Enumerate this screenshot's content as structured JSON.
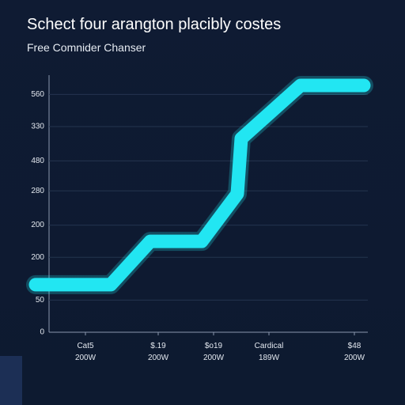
{
  "chart_data": {
    "type": "line",
    "title": "Schect four arangton placibly costes",
    "subtitle": "Free Comnider Chanser",
    "xlim": [
      0,
      420
    ],
    "ylim": [
      0,
      600
    ],
    "yticks": [
      0,
      {
        "value": 75,
        "label": "50"
      },
      {
        "value": 175,
        "label": "200"
      },
      {
        "value": 250,
        "label": "200"
      },
      {
        "value": 330,
        "label": "280"
      },
      {
        "value": 400,
        "label": "480"
      },
      {
        "value": 480,
        "label": "330"
      },
      {
        "value": 555,
        "label": "560"
      }
    ],
    "xticks": [
      {
        "value": 63,
        "label": "Cat5\n200W"
      },
      {
        "value": 155,
        "label": "$.19\n200W"
      },
      {
        "value": 225,
        "label": "$o19\n200W"
      },
      {
        "value": 295,
        "label": "Cardical\n189W"
      },
      {
        "value": 403,
        "label": "$48\n200W"
      }
    ],
    "grid": true,
    "series": [
      {
        "color": "#22e6f2",
        "x": [
          0,
          95,
          145,
          210,
          255,
          260,
          335,
          415
        ],
        "values": [
          111,
          111,
          212,
          212,
          323,
          452,
          576,
          576
        ]
      }
    ]
  }
}
